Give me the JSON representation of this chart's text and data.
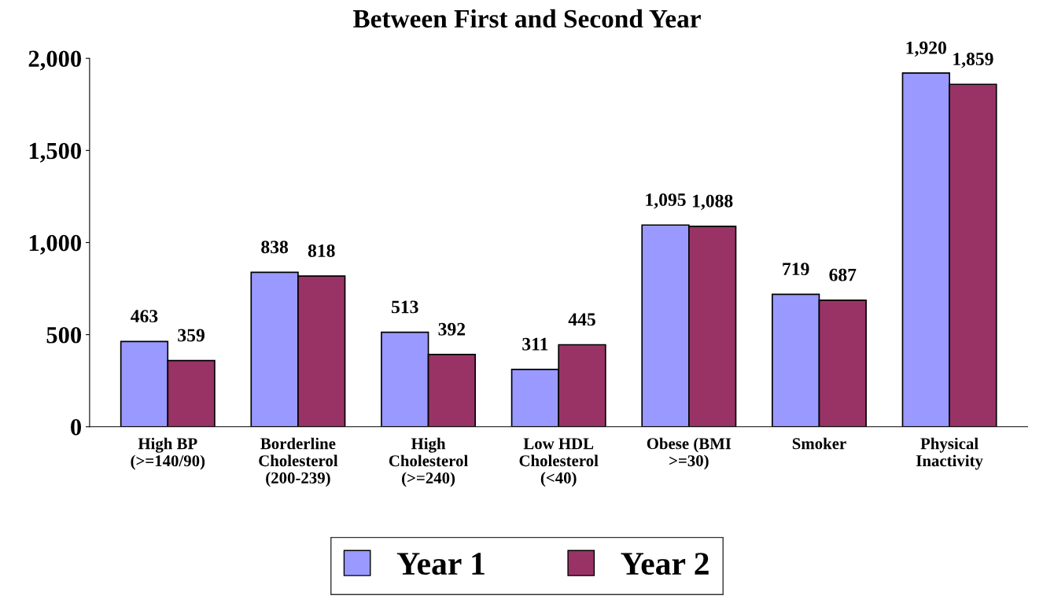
{
  "chart_data": {
    "type": "bar",
    "title": "Between First and Second Year",
    "categories": [
      "High BP\n(>=140/90)",
      "Borderline\nCholesterol\n(200-239)",
      "High\nCholesterol\n(>=240)",
      "Low HDL\nCholesterol\n(<40)",
      "Obese (BMI\n>=30)",
      "Smoker",
      "Physical\nInactivity"
    ],
    "series": [
      {
        "name": "Year 1",
        "color": "#9999ff",
        "values": [
          463,
          838,
          513,
          311,
          1095,
          719,
          1920
        ],
        "value_labels": [
          "463",
          "838",
          "513",
          "311",
          "1,095",
          "719",
          "1,920"
        ]
      },
      {
        "name": "Year 2",
        "color": "#993366",
        "values": [
          359,
          818,
          392,
          445,
          1088,
          687,
          1859
        ],
        "value_labels": [
          "359",
          "818",
          "392",
          "445",
          "1,088",
          "687",
          "1,859"
        ]
      }
    ],
    "ylim": [
      0,
      2000
    ],
    "yticks": [
      0,
      500,
      {
        "value": 1000,
        "label": "1,000"
      },
      {
        "value": 1500,
        "label": "1,500"
      },
      {
        "value": 2000,
        "label": "2,000"
      }
    ],
    "grid": false,
    "legend": "bottom"
  }
}
